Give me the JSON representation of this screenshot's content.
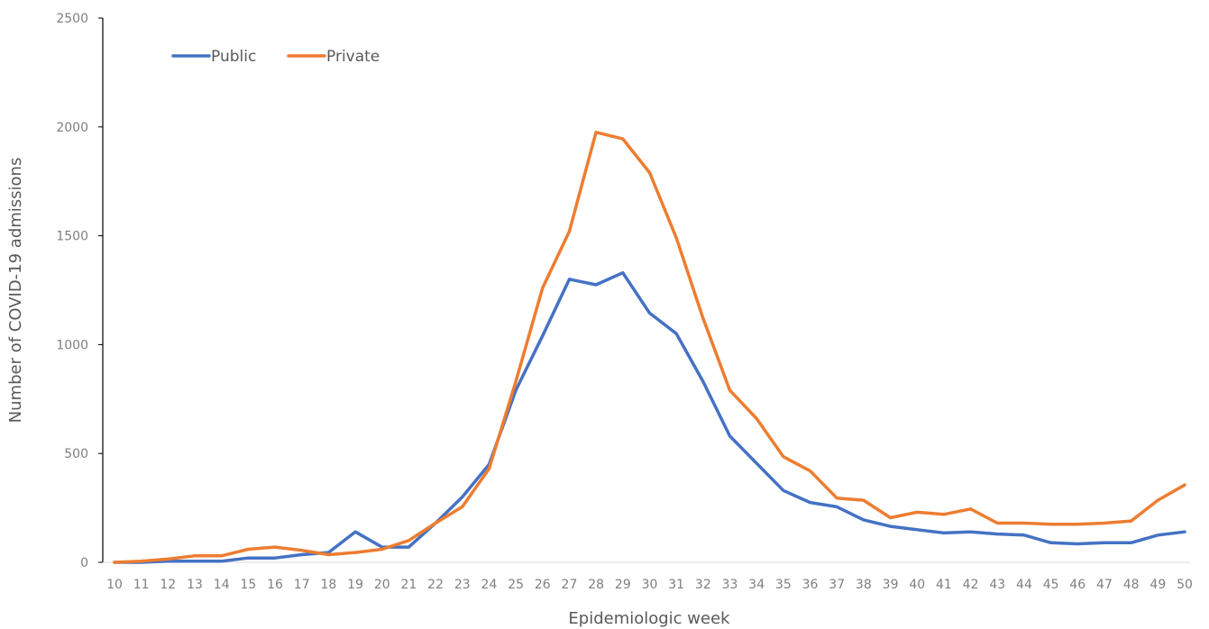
{
  "chart_data": {
    "type": "line",
    "title": "",
    "xlabel": "Epidemiologic week",
    "ylabel": "Number of COVID-19 admissions",
    "ylim": [
      0,
      2500
    ],
    "yticks": [
      0,
      500,
      1000,
      1500,
      2000,
      2500
    ],
    "grid": false,
    "legend_position": "top-left",
    "categories": [
      "10",
      "11",
      "12",
      "13",
      "14",
      "15",
      "16",
      "17",
      "18",
      "19",
      "20",
      "21",
      "22",
      "23",
      "24",
      "25",
      "26",
      "27",
      "28",
      "29",
      "30",
      "31",
      "32",
      "33",
      "34",
      "35",
      "36",
      "37",
      "38",
      "39",
      "40",
      "41",
      "42",
      "43",
      "44",
      "45",
      "46",
      "47",
      "48",
      "49",
      "50"
    ],
    "series": [
      {
        "name": "Public",
        "color": "#4472c4",
        "values": [
          0,
          0,
          5,
          5,
          5,
          20,
          20,
          35,
          45,
          140,
          70,
          70,
          180,
          300,
          450,
          790,
          1040,
          1300,
          1275,
          1330,
          1145,
          1050,
          830,
          580,
          455,
          330,
          275,
          255,
          195,
          165,
          150,
          135,
          140,
          130,
          125,
          90,
          85,
          90,
          90,
          125,
          140
        ]
      },
      {
        "name": "Private",
        "color": "#ed7d31",
        "values": [
          0,
          5,
          15,
          30,
          30,
          60,
          70,
          55,
          35,
          45,
          60,
          100,
          180,
          255,
          430,
          830,
          1260,
          1520,
          1975,
          1945,
          1790,
          1490,
          1120,
          790,
          660,
          485,
          420,
          295,
          285,
          205,
          230,
          220,
          245,
          180,
          180,
          175,
          175,
          180,
          190,
          285,
          355
        ]
      }
    ]
  }
}
